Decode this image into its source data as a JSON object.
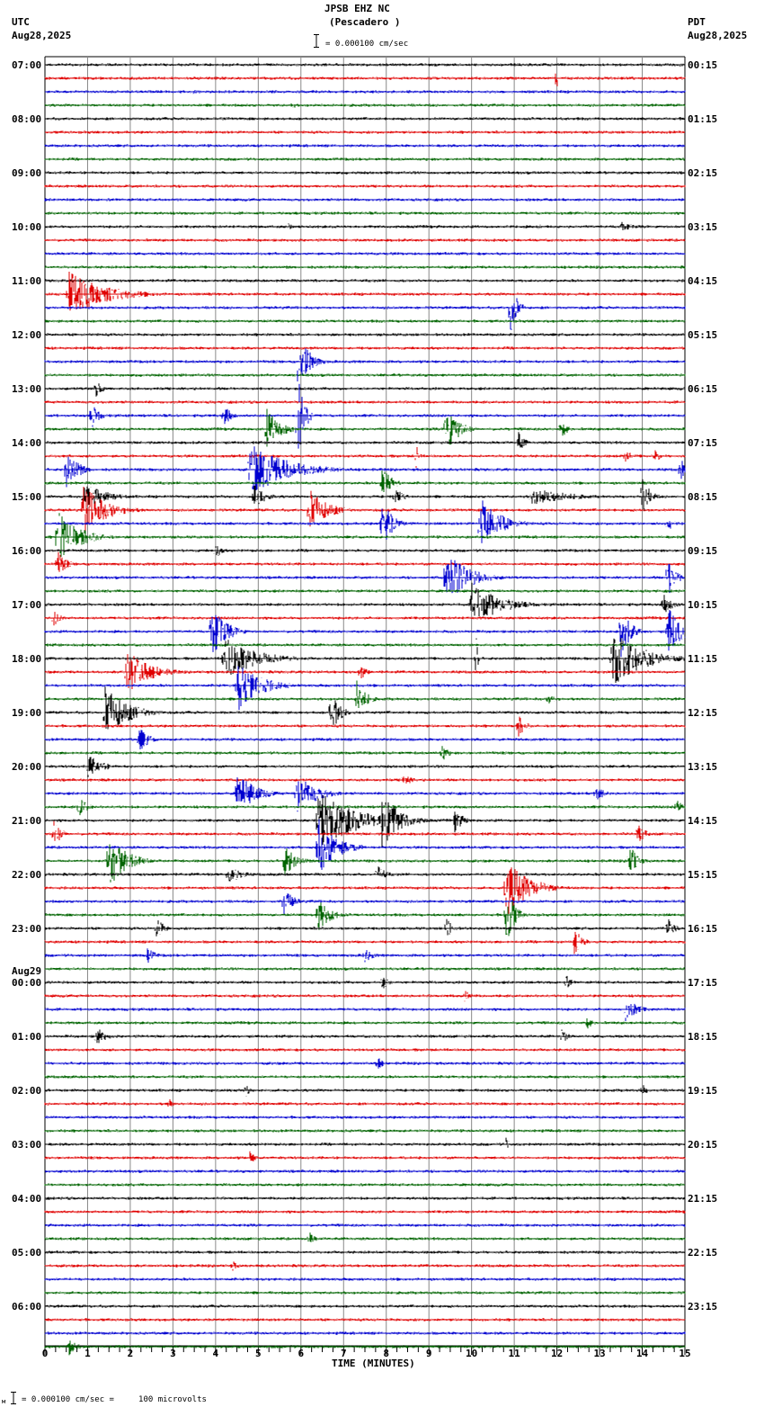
{
  "header": {
    "station": "JPSB EHZ NC",
    "location": "(Pescadero )",
    "scale": "= 0.000100 cm/sec",
    "left_tz": "UTC",
    "left_date": "Aug28,2025",
    "right_tz": "PDT",
    "right_date": "Aug28,2025"
  },
  "footer": {
    "scale_note": "= 0.000100 cm/sec =     100 microvolts",
    "xlabel": "TIME (MINUTES)"
  },
  "chart_data": {
    "type": "line",
    "title": "JPSB EHZ NC (Pescadero ) helicorder",
    "xlabel": "TIME (MINUTES)",
    "ylabel": "",
    "xlim": [
      0,
      15
    ],
    "x_ticks": [
      0,
      1,
      2,
      3,
      4,
      5,
      6,
      7,
      8,
      9,
      10,
      11,
      12,
      13,
      14,
      15
    ],
    "grid": true,
    "trace_colors": [
      "#000000",
      "#e00000",
      "#0000d0",
      "#006400"
    ],
    "rows": 96,
    "minutes_per_row": 15,
    "left_labels": [
      {
        "row": 0,
        "text": "07:00"
      },
      {
        "row": 4,
        "text": "08:00"
      },
      {
        "row": 8,
        "text": "09:00"
      },
      {
        "row": 12,
        "text": "10:00"
      },
      {
        "row": 16,
        "text": "11:00"
      },
      {
        "row": 20,
        "text": "12:00"
      },
      {
        "row": 24,
        "text": "13:00"
      },
      {
        "row": 28,
        "text": "14:00"
      },
      {
        "row": 32,
        "text": "15:00"
      },
      {
        "row": 36,
        "text": "16:00"
      },
      {
        "row": 40,
        "text": "17:00"
      },
      {
        "row": 44,
        "text": "18:00"
      },
      {
        "row": 48,
        "text": "19:00"
      },
      {
        "row": 52,
        "text": "20:00"
      },
      {
        "row": 56,
        "text": "21:00"
      },
      {
        "row": 60,
        "text": "22:00"
      },
      {
        "row": 64,
        "text": "23:00"
      },
      {
        "row": 68,
        "text": "00:00",
        "date": "Aug29"
      },
      {
        "row": 72,
        "text": "01:00"
      },
      {
        "row": 76,
        "text": "02:00"
      },
      {
        "row": 80,
        "text": "03:00"
      },
      {
        "row": 84,
        "text": "04:00"
      },
      {
        "row": 88,
        "text": "05:00"
      },
      {
        "row": 92,
        "text": "06:00"
      }
    ],
    "right_labels": [
      {
        "row": 0,
        "text": "00:15"
      },
      {
        "row": 4,
        "text": "01:15"
      },
      {
        "row": 8,
        "text": "02:15"
      },
      {
        "row": 12,
        "text": "03:15"
      },
      {
        "row": 16,
        "text": "04:15"
      },
      {
        "row": 20,
        "text": "05:15"
      },
      {
        "row": 24,
        "text": "06:15"
      },
      {
        "row": 28,
        "text": "07:15"
      },
      {
        "row": 32,
        "text": "08:15"
      },
      {
        "row": 36,
        "text": "09:15"
      },
      {
        "row": 40,
        "text": "10:15"
      },
      {
        "row": 44,
        "text": "11:15"
      },
      {
        "row": 48,
        "text": "12:15"
      },
      {
        "row": 52,
        "text": "13:15"
      },
      {
        "row": 56,
        "text": "14:15"
      },
      {
        "row": 60,
        "text": "15:15"
      },
      {
        "row": 64,
        "text": "16:15"
      },
      {
        "row": 68,
        "text": "17:15"
      },
      {
        "row": 72,
        "text": "18:15"
      },
      {
        "row": 76,
        "text": "19:15"
      },
      {
        "row": 80,
        "text": "20:15"
      },
      {
        "row": 84,
        "text": "21:15"
      },
      {
        "row": 88,
        "text": "22:15"
      },
      {
        "row": 92,
        "text": "23:15"
      }
    ],
    "events": [
      {
        "row": 1,
        "minute": 12.0,
        "amp": 18,
        "dur": 0.05
      },
      {
        "row": 2,
        "minute": 3.5,
        "amp": 6,
        "dur": 0.1
      },
      {
        "row": 3,
        "minute": 5.8,
        "amp": 6,
        "dur": 0.2
      },
      {
        "row": 12,
        "minute": 5.7,
        "amp": 4,
        "dur": 0.5
      },
      {
        "row": 12,
        "minute": 11.6,
        "amp": 8,
        "dur": 0.1
      },
      {
        "row": 12,
        "minute": 13.5,
        "amp": 6,
        "dur": 0.9
      },
      {
        "row": 17,
        "minute": 0.55,
        "amp": 26,
        "dur": 2.5
      },
      {
        "row": 18,
        "minute": 10.9,
        "amp": 36,
        "dur": 0.4
      },
      {
        "row": 22,
        "minute": 6.0,
        "amp": 26,
        "dur": 0.7
      },
      {
        "row": 24,
        "minute": 1.2,
        "amp": 10,
        "dur": 0.5
      },
      {
        "row": 26,
        "minute": 1.1,
        "amp": 14,
        "dur": 0.5
      },
      {
        "row": 26,
        "minute": 4.2,
        "amp": 12,
        "dur": 0.5
      },
      {
        "row": 26,
        "minute": 5.9,
        "amp": 70,
        "dur": 0.4
      },
      {
        "row": 27,
        "minute": 5.2,
        "amp": 24,
        "dur": 0.9
      },
      {
        "row": 27,
        "minute": 9.4,
        "amp": 28,
        "dur": 0.8
      },
      {
        "row": 27,
        "minute": 12.1,
        "amp": 12,
        "dur": 0.4
      },
      {
        "row": 28,
        "minute": 11.1,
        "amp": 12,
        "dur": 0.4
      },
      {
        "row": 29,
        "minute": 8.7,
        "amp": 14,
        "dur": 0.2
      },
      {
        "row": 29,
        "minute": 13.6,
        "amp": 8,
        "dur": 0.5
      },
      {
        "row": 29,
        "minute": 14.3,
        "amp": 10,
        "dur": 0.3
      },
      {
        "row": 30,
        "minute": 0.5,
        "amp": 22,
        "dur": 0.8
      },
      {
        "row": 30,
        "minute": 4.8,
        "amp": 30,
        "dur": 2.5
      },
      {
        "row": 30,
        "minute": 14.9,
        "amp": 14,
        "dur": 0.3
      },
      {
        "row": 31,
        "minute": 7.9,
        "amp": 20,
        "dur": 0.6
      },
      {
        "row": 32,
        "minute": 0.9,
        "amp": 16,
        "dur": 1.5
      },
      {
        "row": 32,
        "minute": 4.9,
        "amp": 14,
        "dur": 0.8
      },
      {
        "row": 32,
        "minute": 8.2,
        "amp": 10,
        "dur": 0.6
      },
      {
        "row": 32,
        "minute": 11.4,
        "amp": 10,
        "dur": 2.6
      },
      {
        "row": 32,
        "minute": 14.0,
        "amp": 24,
        "dur": 0.5
      },
      {
        "row": 33,
        "minute": 0.9,
        "amp": 30,
        "dur": 1.5
      },
      {
        "row": 33,
        "minute": 6.2,
        "amp": 24,
        "dur": 1.2
      },
      {
        "row": 34,
        "minute": 7.9,
        "amp": 34,
        "dur": 0.6
      },
      {
        "row": 34,
        "minute": 10.2,
        "amp": 30,
        "dur": 1.3
      },
      {
        "row": 34,
        "minute": 14.6,
        "amp": 10,
        "dur": 0.4
      },
      {
        "row": 35,
        "minute": 0.3,
        "amp": 30,
        "dur": 1.4
      },
      {
        "row": 36,
        "minute": 4.0,
        "amp": 10,
        "dur": 0.4
      },
      {
        "row": 37,
        "minute": 0.3,
        "amp": 18,
        "dur": 0.5
      },
      {
        "row": 38,
        "minute": 9.4,
        "amp": 30,
        "dur": 1.5
      },
      {
        "row": 38,
        "minute": 14.6,
        "amp": 24,
        "dur": 0.5
      },
      {
        "row": 40,
        "minute": 10.0,
        "amp": 26,
        "dur": 1.8
      },
      {
        "row": 40,
        "minute": 14.5,
        "amp": 12,
        "dur": 0.6
      },
      {
        "row": 41,
        "minute": 0.2,
        "amp": 10,
        "dur": 0.5
      },
      {
        "row": 42,
        "minute": 3.9,
        "amp": 34,
        "dur": 0.9
      },
      {
        "row": 42,
        "minute": 13.5,
        "amp": 30,
        "dur": 0.6
      },
      {
        "row": 42,
        "minute": 14.6,
        "amp": 30,
        "dur": 0.8
      },
      {
        "row": 44,
        "minute": 4.2,
        "amp": 24,
        "dur": 2.2
      },
      {
        "row": 44,
        "minute": 13.3,
        "amp": 32,
        "dur": 2.0
      },
      {
        "row": 44,
        "minute": 10.1,
        "amp": 40,
        "dur": 0.1
      },
      {
        "row": 45,
        "minute": 1.9,
        "amp": 26,
        "dur": 1.5
      },
      {
        "row": 45,
        "minute": 7.4,
        "amp": 10,
        "dur": 0.4
      },
      {
        "row": 46,
        "minute": 4.5,
        "amp": 30,
        "dur": 1.5
      },
      {
        "row": 47,
        "minute": 7.3,
        "amp": 22,
        "dur": 0.6
      },
      {
        "row": 47,
        "minute": 11.8,
        "amp": 8,
        "dur": 0.5
      },
      {
        "row": 48,
        "minute": 1.4,
        "amp": 30,
        "dur": 1.5
      },
      {
        "row": 48,
        "minute": 6.7,
        "amp": 24,
        "dur": 0.6
      },
      {
        "row": 49,
        "minute": 11.1,
        "amp": 12,
        "dur": 0.5
      },
      {
        "row": 50,
        "minute": 2.2,
        "amp": 16,
        "dur": 0.6
      },
      {
        "row": 51,
        "minute": 9.3,
        "amp": 12,
        "dur": 0.4
      },
      {
        "row": 52,
        "minute": 1.0,
        "amp": 14,
        "dur": 1.0
      },
      {
        "row": 53,
        "minute": 8.4,
        "amp": 8,
        "dur": 0.6
      },
      {
        "row": 54,
        "minute": 4.5,
        "amp": 24,
        "dur": 1.2
      },
      {
        "row": 54,
        "minute": 5.9,
        "amp": 24,
        "dur": 1.3
      },
      {
        "row": 54,
        "minute": 12.9,
        "amp": 10,
        "dur": 0.6
      },
      {
        "row": 55,
        "minute": 0.8,
        "amp": 14,
        "dur": 0.5
      },
      {
        "row": 55,
        "minute": 14.8,
        "amp": 12,
        "dur": 0.4
      },
      {
        "row": 56,
        "minute": 6.4,
        "amp": 34,
        "dur": 2.5
      },
      {
        "row": 56,
        "minute": 7.9,
        "amp": 32,
        "dur": 1.2
      },
      {
        "row": 56,
        "minute": 9.6,
        "amp": 14,
        "dur": 0.6
      },
      {
        "row": 57,
        "minute": 0.2,
        "amp": 16,
        "dur": 0.5
      },
      {
        "row": 57,
        "minute": 13.9,
        "amp": 12,
        "dur": 0.5
      },
      {
        "row": 58,
        "minute": 6.4,
        "amp": 34,
        "dur": 1.2
      },
      {
        "row": 59,
        "minute": 1.5,
        "amp": 30,
        "dur": 1.2
      },
      {
        "row": 59,
        "minute": 5.6,
        "amp": 18,
        "dur": 0.8
      },
      {
        "row": 59,
        "minute": 13.7,
        "amp": 20,
        "dur": 0.5
      },
      {
        "row": 60,
        "minute": 4.3,
        "amp": 12,
        "dur": 0.8
      },
      {
        "row": 60,
        "minute": 7.8,
        "amp": 10,
        "dur": 0.6
      },
      {
        "row": 61,
        "minute": 10.8,
        "amp": 34,
        "dur": 1.5
      },
      {
        "row": 62,
        "minute": 5.6,
        "amp": 16,
        "dur": 0.6
      },
      {
        "row": 63,
        "minute": 6.4,
        "amp": 20,
        "dur": 0.8
      },
      {
        "row": 63,
        "minute": 10.8,
        "amp": 40,
        "dur": 0.5
      },
      {
        "row": 64,
        "minute": 2.6,
        "amp": 14,
        "dur": 0.5
      },
      {
        "row": 64,
        "minute": 9.4,
        "amp": 12,
        "dur": 0.5
      },
      {
        "row": 64,
        "minute": 14.6,
        "amp": 12,
        "dur": 0.5
      },
      {
        "row": 65,
        "minute": 12.4,
        "amp": 18,
        "dur": 0.5
      },
      {
        "row": 66,
        "minute": 2.4,
        "amp": 10,
        "dur": 0.5
      },
      {
        "row": 66,
        "minute": 7.5,
        "amp": 8,
        "dur": 0.6
      },
      {
        "row": 68,
        "minute": 7.9,
        "amp": 10,
        "dur": 0.4
      },
      {
        "row": 68,
        "minute": 12.2,
        "amp": 10,
        "dur": 0.4
      },
      {
        "row": 69,
        "minute": 9.8,
        "amp": 8,
        "dur": 0.5
      },
      {
        "row": 70,
        "minute": 13.6,
        "amp": 14,
        "dur": 0.8
      },
      {
        "row": 71,
        "minute": 12.7,
        "amp": 8,
        "dur": 0.4
      },
      {
        "row": 72,
        "minute": 1.2,
        "amp": 12,
        "dur": 0.6
      },
      {
        "row": 72,
        "minute": 12.1,
        "amp": 10,
        "dur": 0.4
      },
      {
        "row": 74,
        "minute": 7.8,
        "amp": 10,
        "dur": 0.3
      },
      {
        "row": 76,
        "minute": 4.7,
        "amp": 8,
        "dur": 0.3
      },
      {
        "row": 76,
        "minute": 14.0,
        "amp": 8,
        "dur": 0.3
      },
      {
        "row": 77,
        "minute": 2.9,
        "amp": 8,
        "dur": 0.3
      },
      {
        "row": 80,
        "minute": 10.8,
        "amp": 8,
        "dur": 0.3
      },
      {
        "row": 81,
        "minute": 4.8,
        "amp": 8,
        "dur": 0.4
      },
      {
        "row": 87,
        "minute": 6.2,
        "amp": 8,
        "dur": 0.4
      },
      {
        "row": 89,
        "minute": 4.4,
        "amp": 6,
        "dur": 0.4
      },
      {
        "row": 95,
        "minute": 0.55,
        "amp": 12,
        "dur": 0.5
      }
    ]
  }
}
